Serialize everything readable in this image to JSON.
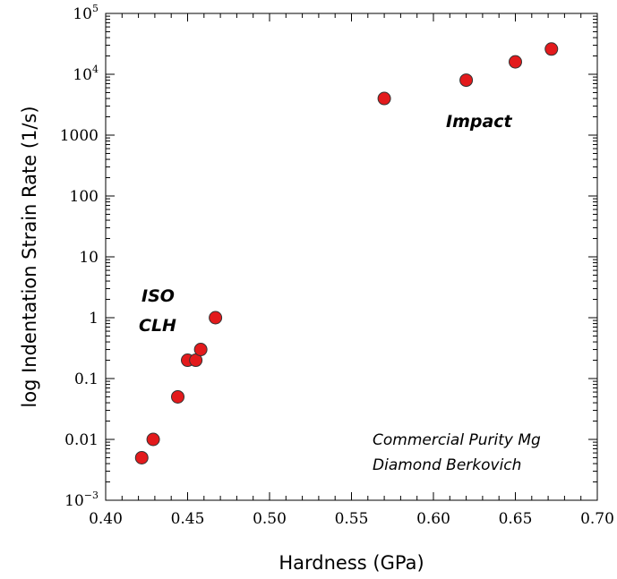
{
  "chart_data": {
    "type": "scatter",
    "title": "",
    "xlabel": "Hardness (GPa)",
    "ylabel": "log Indentation Strain Rate (1/s)",
    "xlim": [
      0.4,
      0.7
    ],
    "ylim": [
      0.001,
      100000
    ],
    "yscale": "log",
    "grid": false,
    "marker_color": "#e31a1c",
    "marker_edge_color": "#333333",
    "x_ticks": [
      0.4,
      0.45,
      0.5,
      0.55,
      0.6,
      0.65,
      0.7
    ],
    "x_tick_labels": [
      "0.40",
      "0.45",
      "0.50",
      "0.55",
      "0.60",
      "0.65",
      "0.70"
    ],
    "y_ticks": [
      {
        "value": 0.001,
        "base": "10",
        "exp": "−3",
        "label": ""
      },
      {
        "value": 0.01,
        "label": "0.01"
      },
      {
        "value": 0.1,
        "label": "0.1"
      },
      {
        "value": 1,
        "label": "1"
      },
      {
        "value": 10,
        "label": "10"
      },
      {
        "value": 100,
        "label": "100"
      },
      {
        "value": 1000,
        "label": "1000"
      },
      {
        "value": 10000,
        "base": "10",
        "exp": "4",
        "label": ""
      },
      {
        "value": 100000,
        "base": "10",
        "exp": "5",
        "label": ""
      }
    ],
    "series": [
      {
        "points": [
          {
            "x": 0.422,
            "y": 0.005
          },
          {
            "x": 0.429,
            "y": 0.01
          },
          {
            "x": 0.444,
            "y": 0.05
          },
          {
            "x": 0.45,
            "y": 0.2
          },
          {
            "x": 0.455,
            "y": 0.2
          },
          {
            "x": 0.458,
            "y": 0.3
          },
          {
            "x": 0.467,
            "y": 1
          },
          {
            "x": 0.57,
            "y": 4000
          },
          {
            "x": 0.62,
            "y": 8000
          },
          {
            "x": 0.65,
            "y": 16000
          },
          {
            "x": 0.672,
            "y": 26000
          }
        ]
      }
    ],
    "annotations": [
      {
        "id": "iso",
        "text": "ISO",
        "style": "bold"
      },
      {
        "id": "clh",
        "text": "CLH",
        "style": "bold"
      },
      {
        "id": "impact",
        "text": "Impact",
        "style": "bold"
      },
      {
        "id": "material",
        "text": "Commercial Purity Mg",
        "style": "note"
      },
      {
        "id": "indenter",
        "text": "Diamond Berkovich",
        "style": "note"
      }
    ]
  }
}
